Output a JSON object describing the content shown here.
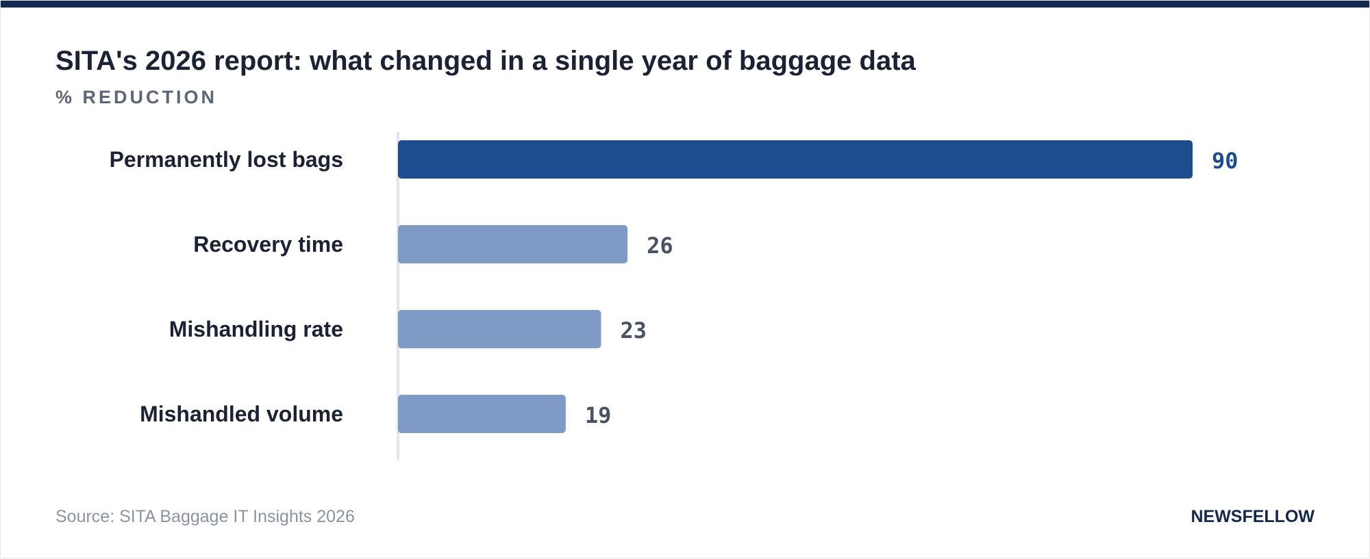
{
  "header": {
    "title": "SITA's 2026 report: what changed in a single year of baggage data",
    "subtitle": "% REDUCTION"
  },
  "footer": {
    "source": "Source: SITA Baggage IT Insights 2026",
    "brand": "NEWSFELLOW"
  },
  "colors": {
    "top_bar": "#142850",
    "highlight_bar": "#1b4d8f",
    "bar": "#7f9bc5",
    "highlight_value": "#1b4d8f",
    "value": "#475263",
    "label": "#1a2233",
    "axis": "#e2e5ea"
  },
  "chart_data": {
    "type": "bar",
    "orientation": "horizontal",
    "title": "SITA's 2026 report: what changed in a single year of baggage data",
    "ylabel": "% REDUCTION",
    "categories": [
      "Permanently lost bags",
      "Recovery time",
      "Mishandling rate",
      "Mishandled volume"
    ],
    "values": [
      90,
      26,
      23,
      19
    ],
    "highlight_index": 0,
    "xlim": [
      0,
      90
    ],
    "grid": false,
    "legend": "none"
  }
}
